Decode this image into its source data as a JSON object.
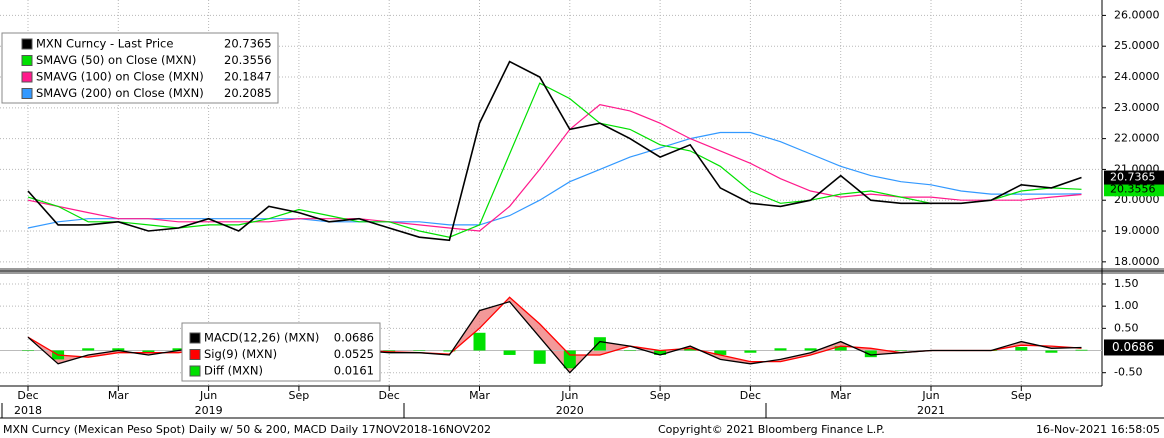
{
  "chart_data": [
    {
      "type": "line",
      "x": [
        "2018-12",
        "2019-01",
        "2019-02",
        "2019-03",
        "2019-04",
        "2019-05",
        "2019-06",
        "2019-07",
        "2019-08",
        "2019-09",
        "2019-10",
        "2019-11",
        "2019-12",
        "2020-01",
        "2020-02",
        "2020-03",
        "2020-04",
        "2020-05",
        "2020-06",
        "2020-07",
        "2020-08",
        "2020-09",
        "2020-10",
        "2020-11",
        "2020-12",
        "2021-01",
        "2021-02",
        "2021-03",
        "2021-04",
        "2021-05",
        "2021-06",
        "2021-07",
        "2021-08",
        "2021-09",
        "2021-10",
        "2021-11"
      ],
      "ylim": [
        17.8,
        26.5
      ],
      "yticks": [
        {
          "value": 18,
          "label": "18.0000"
        },
        {
          "value": 19,
          "label": "19.0000"
        },
        {
          "value": 20,
          "label": "20.0000"
        },
        {
          "value": 21,
          "label": "21.0000"
        },
        {
          "value": 22,
          "label": "22.0000"
        },
        {
          "value": 23,
          "label": "23.0000"
        },
        {
          "value": 24,
          "label": "24.0000"
        },
        {
          "value": 25,
          "label": "25.0000"
        },
        {
          "value": 26,
          "label": "26.0000"
        }
      ],
      "grid": true,
      "legend": "top-left",
      "series": [
        {
          "name": "MXN Curncy - Last Price",
          "color": "#000000",
          "last_value": 20.7365,
          "values": [
            20.3,
            19.2,
            19.2,
            19.3,
            19.0,
            19.1,
            19.4,
            19.0,
            19.8,
            19.6,
            19.3,
            19.4,
            19.1,
            18.8,
            18.7,
            22.5,
            24.5,
            24.0,
            22.3,
            22.5,
            22.0,
            21.4,
            21.8,
            20.4,
            19.9,
            19.8,
            20.0,
            20.8,
            20.0,
            19.9,
            19.9,
            19.9,
            20.0,
            20.5,
            20.4,
            20.7365
          ]
        },
        {
          "name": "SMAVG (50)  on Close (MXN)",
          "color": "#00e000",
          "last_value": 20.3556,
          "values": [
            20.1,
            19.8,
            19.3,
            19.3,
            19.2,
            19.1,
            19.2,
            19.2,
            19.4,
            19.7,
            19.5,
            19.3,
            19.3,
            19.0,
            18.8,
            19.2,
            21.5,
            23.8,
            23.3,
            22.5,
            22.3,
            21.8,
            21.6,
            21.1,
            20.3,
            19.9,
            20.0,
            20.2,
            20.3,
            20.1,
            19.9,
            19.9,
            20.0,
            20.3,
            20.4,
            20.3556
          ]
        },
        {
          "name": "SMAVG (100)  on Close (MXN)",
          "color": "#ff1a8c",
          "last_value": 20.1847,
          "values": [
            20.0,
            19.8,
            19.6,
            19.4,
            19.4,
            19.3,
            19.3,
            19.3,
            19.3,
            19.4,
            19.4,
            19.4,
            19.3,
            19.2,
            19.1,
            19.0,
            19.8,
            21.0,
            22.3,
            23.1,
            22.9,
            22.5,
            22.0,
            21.6,
            21.2,
            20.7,
            20.3,
            20.1,
            20.2,
            20.1,
            20.1,
            20.0,
            20.0,
            20.0,
            20.1,
            20.1847
          ]
        },
        {
          "name": "SMAVG (200)  on Close (MXN)",
          "color": "#3399ff",
          "last_value": 20.2085,
          "values": [
            19.1,
            19.3,
            19.4,
            19.4,
            19.4,
            19.4,
            19.4,
            19.4,
            19.4,
            19.4,
            19.3,
            19.3,
            19.3,
            19.3,
            19.2,
            19.2,
            19.5,
            20.0,
            20.6,
            21.0,
            21.4,
            21.7,
            22.0,
            22.2,
            22.2,
            21.9,
            21.5,
            21.1,
            20.8,
            20.6,
            20.5,
            20.3,
            20.2,
            20.2,
            20.2,
            20.2085
          ]
        }
      ]
    },
    {
      "type": "macd",
      "x": [
        "2018-12",
        "2019-01",
        "2019-02",
        "2019-03",
        "2019-04",
        "2019-05",
        "2019-06",
        "2019-07",
        "2019-08",
        "2019-09",
        "2019-10",
        "2019-11",
        "2019-12",
        "2020-01",
        "2020-02",
        "2020-03",
        "2020-04",
        "2020-05",
        "2020-06",
        "2020-07",
        "2020-08",
        "2020-09",
        "2020-10",
        "2020-11",
        "2020-12",
        "2021-01",
        "2021-02",
        "2021-03",
        "2021-04",
        "2021-05",
        "2021-06",
        "2021-07",
        "2021-08",
        "2021-09",
        "2021-10",
        "2021-11"
      ],
      "ylim": [
        -0.8,
        1.68
      ],
      "yticks": [
        {
          "value": -0.5,
          "label": "-0.50"
        },
        {
          "value": 0.5,
          "label": "0.50"
        },
        {
          "value": 1,
          "label": "1.00"
        },
        {
          "value": 1.5,
          "label": "1.50"
        }
      ],
      "xticks": [
        {
          "value": "2018-12",
          "label": "Dec"
        },
        {
          "value": "2019-03",
          "label": "Mar"
        },
        {
          "value": "2019-06",
          "label": "Jun"
        },
        {
          "value": "2019-09",
          "label": "Sep"
        },
        {
          "value": "2019-12",
          "label": "Dec"
        },
        {
          "value": "2020-03",
          "label": "Mar"
        },
        {
          "value": "2020-06",
          "label": "Jun"
        },
        {
          "value": "2020-09",
          "label": "Sep"
        },
        {
          "value": "2020-12",
          "label": "Dec"
        },
        {
          "value": "2021-03",
          "label": "Mar"
        },
        {
          "value": "2021-06",
          "label": "Jun"
        },
        {
          "value": "2021-09",
          "label": "Sep"
        }
      ],
      "year_labels": [
        {
          "value": "2018-12",
          "label": "2018"
        },
        {
          "value": "2019-06",
          "label": "2019"
        },
        {
          "value": "2020-06",
          "label": "2020"
        },
        {
          "value": "2021-06",
          "label": "2021"
        }
      ],
      "grid": true,
      "legend": "center",
      "series": [
        {
          "name": "MACD(12,26) (MXN)",
          "color": "#000000",
          "last_value": 0.0686,
          "values": [
            0.3,
            -0.3,
            -0.1,
            0.0,
            -0.1,
            0.0,
            0.1,
            -0.1,
            0.2,
            0.0,
            -0.05,
            0.0,
            -0.05,
            -0.05,
            -0.1,
            0.9,
            1.1,
            0.3,
            -0.5,
            0.2,
            0.1,
            -0.1,
            0.1,
            -0.2,
            -0.3,
            -0.2,
            -0.05,
            0.2,
            -0.1,
            -0.05,
            0.0,
            0.0,
            0.0,
            0.2,
            0.05,
            0.0686
          ]
        },
        {
          "name": "Sig(9) (MXN)",
          "color": "#ff0000",
          "last_value": 0.0525,
          "values": [
            0.3,
            -0.1,
            -0.15,
            -0.05,
            -0.05,
            -0.05,
            0.05,
            0.0,
            0.1,
            0.05,
            0.0,
            0.0,
            -0.03,
            -0.05,
            -0.08,
            0.5,
            1.2,
            0.6,
            -0.1,
            -0.1,
            0.1,
            0.0,
            0.05,
            -0.1,
            -0.25,
            -0.25,
            -0.1,
            0.1,
            0.05,
            -0.05,
            0.0,
            0.0,
            0.0,
            0.12,
            0.1,
            0.0525
          ]
        },
        {
          "name": "Diff (MXN)",
          "color": "#00e000",
          "last_value": 0.0161,
          "values": [
            0,
            -0.2,
            0.05,
            0.05,
            -0.05,
            0.05,
            0.05,
            -0.1,
            0.1,
            -0.05,
            -0.05,
            0,
            -0.02,
            0,
            -0.02,
            0.4,
            -0.1,
            -0.3,
            -0.4,
            0.3,
            0,
            -0.1,
            0.05,
            -0.1,
            -0.05,
            0.05,
            0.05,
            0.1,
            -0.15,
            0,
            0,
            0,
            0,
            0.08,
            -0.05,
            0.0161
          ]
        }
      ]
    }
  ],
  "footer": {
    "description": "MXN Curncy (Mexican Peso Spot) Daily w/ 50 & 200, MACD  Daily 17NOV2018-16NOV202",
    "copyright": "Copyright© 2021 Bloomberg Finance L.P.",
    "timestamp": "16-Nov-2021 16:58:05"
  }
}
